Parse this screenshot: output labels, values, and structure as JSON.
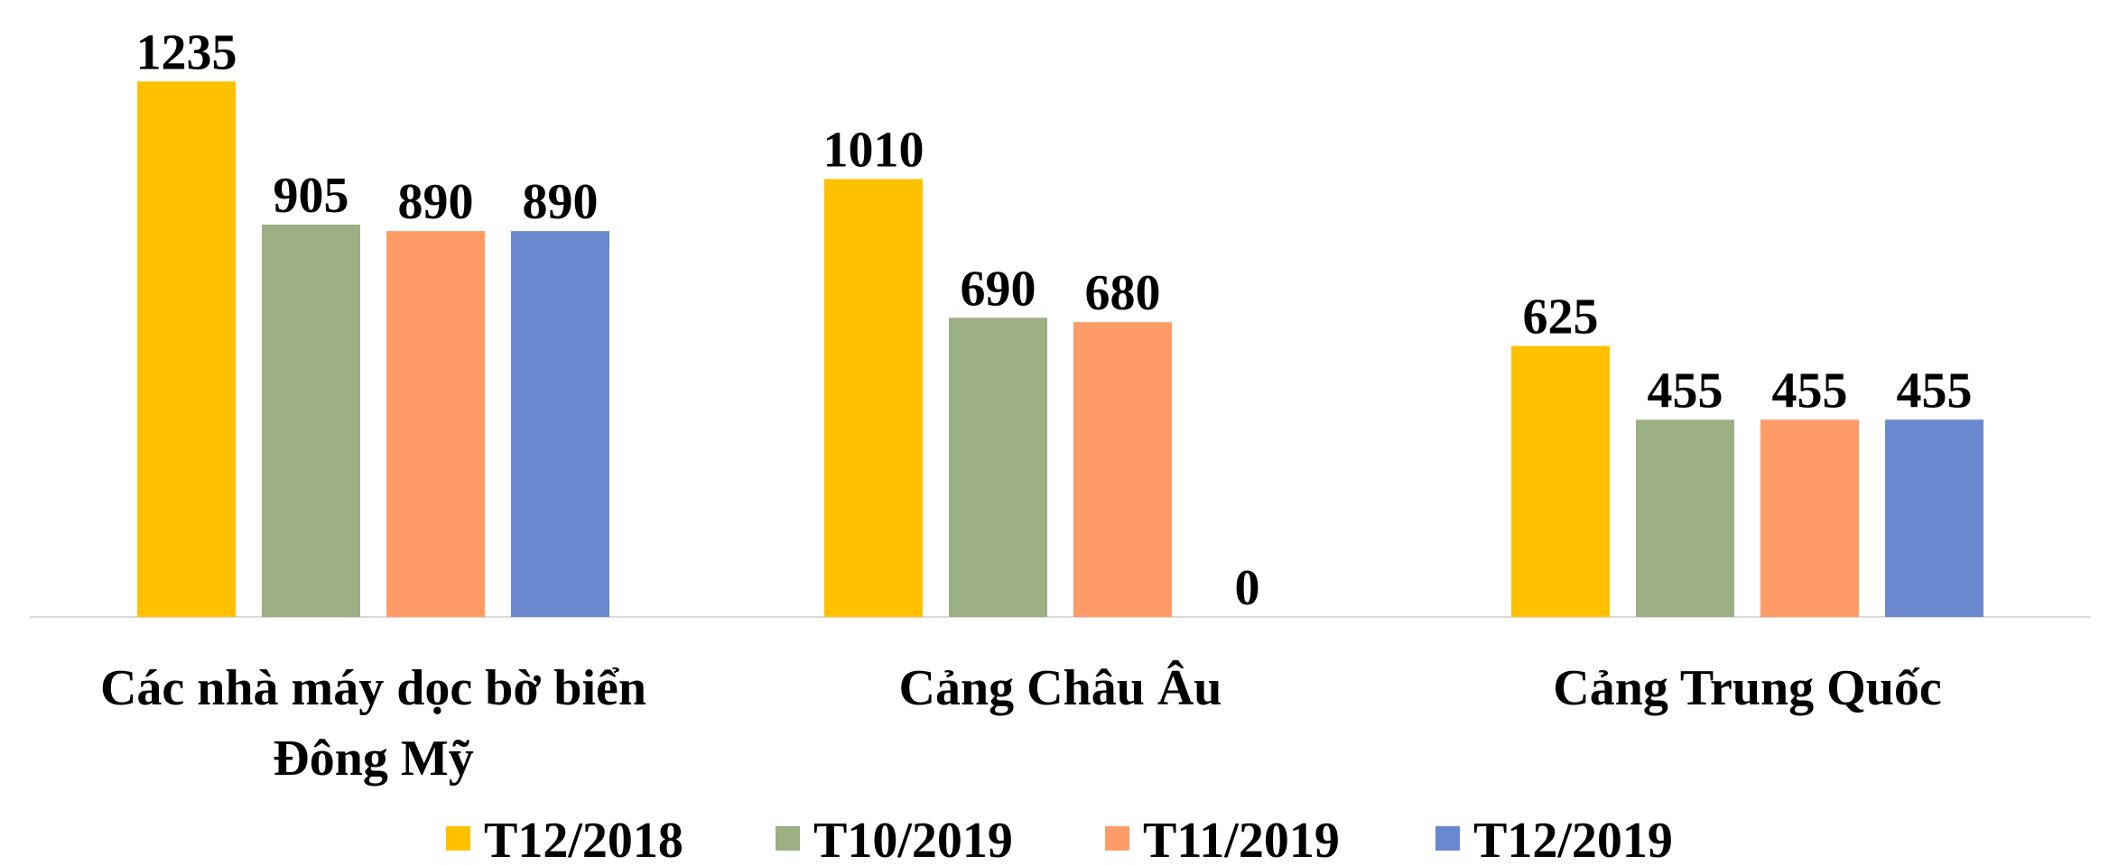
{
  "chart_data": {
    "type": "bar",
    "categories": [
      "Các nhà máy dọc bờ biển Đông Mỹ",
      "Cảng Châu Âu",
      "Cảng Trung Quốc"
    ],
    "series": [
      {
        "name": "T12/2018",
        "color": "#FFC000",
        "values": [
          1235,
          1010,
          625
        ]
      },
      {
        "name": "T10/2019",
        "color": "#9CB084",
        "values": [
          905,
          690,
          455
        ]
      },
      {
        "name": "T11/2019",
        "color": "#FF9B66",
        "values": [
          890,
          680,
          455
        ]
      },
      {
        "name": "T12/2019",
        "color": "#6A88CF",
        "values": [
          890,
          0,
          455
        ]
      }
    ],
    "ylim": [
      0,
      1400
    ],
    "legend": "bottom"
  }
}
